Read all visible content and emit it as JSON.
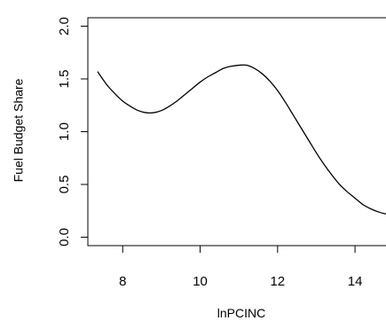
{
  "chart_data": {
    "type": "line",
    "xlabel": "lnPCINC",
    "ylabel": "Fuel Budget Share",
    "xlim": [
      7.1,
      14.8
    ],
    "ylim": [
      -0.08,
      2.08
    ],
    "x_ticks": [
      8,
      10,
      12,
      14
    ],
    "x_tick_labels": [
      "8",
      "10",
      "12",
      "14"
    ],
    "y_ticks": [
      0.0,
      0.5,
      1.0,
      1.5,
      2.0
    ],
    "y_tick_labels": [
      "0.0",
      "0.5",
      "1.0",
      "1.5",
      "2.0"
    ],
    "grid": false,
    "series": [
      {
        "x": [
          7.35,
          7.6,
          7.8,
          8.0,
          8.2,
          8.4,
          8.6,
          8.8,
          9.0,
          9.2,
          9.4,
          9.6,
          9.8,
          10.0,
          10.2,
          10.4,
          10.6,
          10.8,
          11.0,
          11.2,
          11.4,
          11.6,
          11.8,
          12.0,
          12.2,
          12.4,
          12.6,
          12.8,
          13.0,
          13.2,
          13.4,
          13.6,
          13.8,
          14.0,
          14.2,
          14.4,
          14.6,
          14.8
        ],
        "y": [
          1.57,
          1.44,
          1.36,
          1.29,
          1.24,
          1.2,
          1.18,
          1.18,
          1.2,
          1.24,
          1.29,
          1.35,
          1.41,
          1.47,
          1.52,
          1.56,
          1.6,
          1.62,
          1.63,
          1.63,
          1.6,
          1.55,
          1.48,
          1.39,
          1.28,
          1.16,
          1.04,
          0.92,
          0.8,
          0.69,
          0.59,
          0.5,
          0.43,
          0.37,
          0.31,
          0.27,
          0.24,
          0.22
        ]
      }
    ]
  }
}
